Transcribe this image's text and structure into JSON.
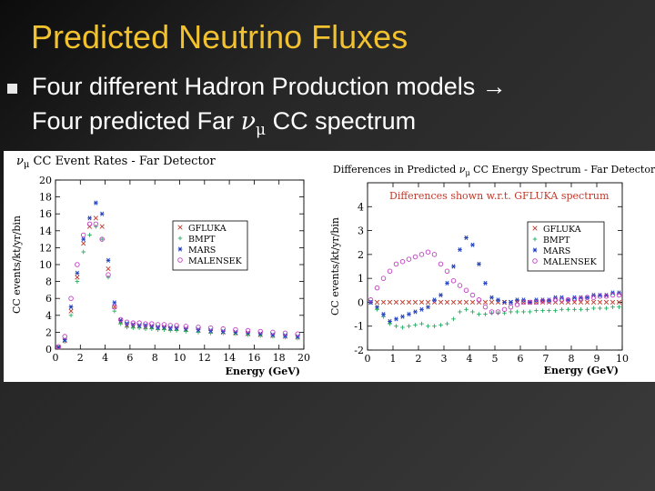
{
  "slide": {
    "title": "Predicted Neutrino Fluxes",
    "bullet_line1": "Four different Hadron Production models →",
    "bullet_line2_a": "Four predicted Far ",
    "bullet_line2_nu": "ν",
    "bullet_line2_mu": "μ",
    "bullet_line2_b": " CC spectrum",
    "colors": {
      "background": "#2e2e2e",
      "title": "#f2c12e",
      "text": "#ffffff",
      "bullet": "#e8e8e8"
    },
    "bullet_icon": "square-bullet"
  },
  "chart_data": [
    {
      "type": "scatter",
      "title": "νμ CC Event Rates - Far Detector",
      "xlabel": "Energy (GeV)",
      "ylabel": "CC events/kt/yr/bin",
      "xlim": [
        0,
        20
      ],
      "ylim": [
        0,
        20
      ],
      "xticks": [
        "0",
        "2",
        "4",
        "6",
        "8",
        "10",
        "12",
        "14",
        "16",
        "18",
        "20"
      ],
      "yticks": [
        "0",
        "2",
        "4",
        "6",
        "8",
        "10",
        "12",
        "14",
        "16",
        "18",
        "20"
      ],
      "grid": false,
      "legend_position": "right",
      "x": [
        0.25,
        0.75,
        1.25,
        1.75,
        2.25,
        2.75,
        3.25,
        3.75,
        4.25,
        4.75,
        5.25,
        5.75,
        6.25,
        6.75,
        7.25,
        7.75,
        8.25,
        8.75,
        9.25,
        9.75,
        10.5,
        11.5,
        12.5,
        13.5,
        14.5,
        15.5,
        16.5,
        17.5,
        18.5,
        19.5
      ],
      "series": [
        {
          "name": "GFLUKA",
          "marker": "x",
          "color": "#c0392b",
          "values": [
            0.2,
            1.0,
            4.5,
            8.5,
            12.5,
            14.5,
            15.5,
            14.5,
            9.5,
            5.0,
            3.2,
            2.8,
            2.7,
            2.7,
            2.6,
            2.6,
            2.5,
            2.5,
            2.4,
            2.4,
            2.3,
            2.2,
            2.1,
            2.0,
            1.9,
            1.8,
            1.7,
            1.6,
            1.5,
            1.4
          ]
        },
        {
          "name": "BMPT",
          "marker": "+",
          "color": "#27ae60",
          "values": [
            0.2,
            0.9,
            4.0,
            8.0,
            11.5,
            13.5,
            14.5,
            13.0,
            8.5,
            4.5,
            3.0,
            2.6,
            2.5,
            2.5,
            2.4,
            2.4,
            2.3,
            2.3,
            2.2,
            2.2,
            2.1,
            2.0,
            1.9,
            1.9,
            1.8,
            1.7,
            1.6,
            1.5,
            1.4,
            1.3
          ]
        },
        {
          "name": "MARS",
          "marker": "*",
          "color": "#1f3fbf",
          "values": [
            0.2,
            1.1,
            5.0,
            9.0,
            13.0,
            15.5,
            17.3,
            16.0,
            10.5,
            5.5,
            3.4,
            3.0,
            2.9,
            2.8,
            2.8,
            2.7,
            2.6,
            2.6,
            2.5,
            2.5,
            2.4,
            2.3,
            2.2,
            2.1,
            2.0,
            1.9,
            1.8,
            1.7,
            1.6,
            1.5
          ]
        },
        {
          "name": "MALENSEK",
          "marker": "o",
          "color": "#c040c0",
          "values": [
            0.3,
            1.5,
            6.0,
            10.0,
            13.5,
            14.8,
            14.8,
            13.0,
            8.8,
            5.0,
            3.5,
            3.2,
            3.1,
            3.1,
            3.0,
            3.0,
            2.9,
            2.9,
            2.8,
            2.8,
            2.7,
            2.6,
            2.5,
            2.4,
            2.3,
            2.2,
            2.1,
            2.0,
            1.9,
            1.8
          ]
        }
      ]
    },
    {
      "type": "scatter",
      "title": "Differences in Predicted νμ CC Energy Spectrum - Far Detector",
      "annotation": "Differences shown w.r.t. GFLUKA spectrum",
      "xlabel": "Energy (GeV)",
      "ylabel": "CC events/kt/yr/bin",
      "xlim": [
        0,
        10
      ],
      "ylim": [
        -2,
        5
      ],
      "xticks": [
        "0",
        "1",
        "2",
        "3",
        "4",
        "5",
        "6",
        "7",
        "8",
        "9",
        "10"
      ],
      "yticks": [
        "-2",
        "-1",
        "0",
        "1",
        "2",
        "3",
        "4"
      ],
      "grid": false,
      "legend_position": "right",
      "x": [
        0.125,
        0.375,
        0.625,
        0.875,
        1.125,
        1.375,
        1.625,
        1.875,
        2.125,
        2.375,
        2.625,
        2.875,
        3.125,
        3.375,
        3.625,
        3.875,
        4.125,
        4.375,
        4.625,
        4.875,
        5.125,
        5.375,
        5.625,
        5.875,
        6.125,
        6.375,
        6.625,
        6.875,
        7.125,
        7.375,
        7.625,
        7.875,
        8.125,
        8.375,
        8.625,
        8.875,
        9.125,
        9.375,
        9.625,
        9.875
      ],
      "series": [
        {
          "name": "GFLUKA",
          "marker": "x",
          "color": "#c0392b",
          "values": [
            0,
            0,
            0,
            0,
            0,
            0,
            0,
            0,
            0,
            0,
            0,
            0,
            0,
            0,
            0,
            0,
            0,
            0,
            0,
            0,
            0,
            0,
            0,
            0,
            0,
            0,
            0,
            0,
            0,
            0,
            0,
            0,
            0,
            0,
            0,
            0,
            0,
            0,
            0,
            0
          ]
        },
        {
          "name": "BMPT",
          "marker": "+",
          "color": "#27ae60",
          "values": [
            0,
            -0.3,
            -0.6,
            -0.9,
            -1.0,
            -1.05,
            -1.0,
            -0.95,
            -0.9,
            -1.0,
            -1.0,
            -0.95,
            -0.9,
            -0.7,
            -0.4,
            -0.3,
            -0.4,
            -0.5,
            -0.5,
            -0.45,
            -0.45,
            -0.45,
            -0.4,
            -0.4,
            -0.4,
            -0.4,
            -0.35,
            -0.35,
            -0.35,
            -0.35,
            -0.3,
            -0.3,
            -0.3,
            -0.3,
            -0.3,
            -0.25,
            -0.25,
            -0.25,
            -0.2,
            -0.2
          ]
        },
        {
          "name": "MARS",
          "marker": "*",
          "color": "#1f3fbf",
          "values": [
            0,
            -0.2,
            -0.5,
            -0.8,
            -0.7,
            -0.6,
            -0.5,
            -0.4,
            -0.3,
            -0.2,
            0.1,
            0.3,
            0.8,
            1.5,
            2.2,
            2.7,
            2.4,
            1.6,
            0.8,
            0.2,
            0.1,
            0.0,
            0.0,
            0.1,
            0.1,
            0.0,
            0.1,
            0.1,
            0.1,
            0.2,
            0.2,
            0.1,
            0.2,
            0.2,
            0.2,
            0.3,
            0.3,
            0.3,
            0.4,
            0.4
          ]
        },
        {
          "name": "MALENSEK",
          "marker": "o",
          "color": "#c040c0",
          "values": [
            0.1,
            0.6,
            1.0,
            1.3,
            1.6,
            1.7,
            1.8,
            1.9,
            2.0,
            2.1,
            2.0,
            1.6,
            1.3,
            0.9,
            0.7,
            0.5,
            0.3,
            0.1,
            -0.2,
            -0.4,
            -0.4,
            -0.3,
            -0.2,
            -0.1,
            0.0,
            0.0,
            0.0,
            0.05,
            0.05,
            0.1,
            0.1,
            0.1,
            0.15,
            0.15,
            0.2,
            0.2,
            0.25,
            0.25,
            0.3,
            0.3
          ]
        }
      ]
    }
  ]
}
